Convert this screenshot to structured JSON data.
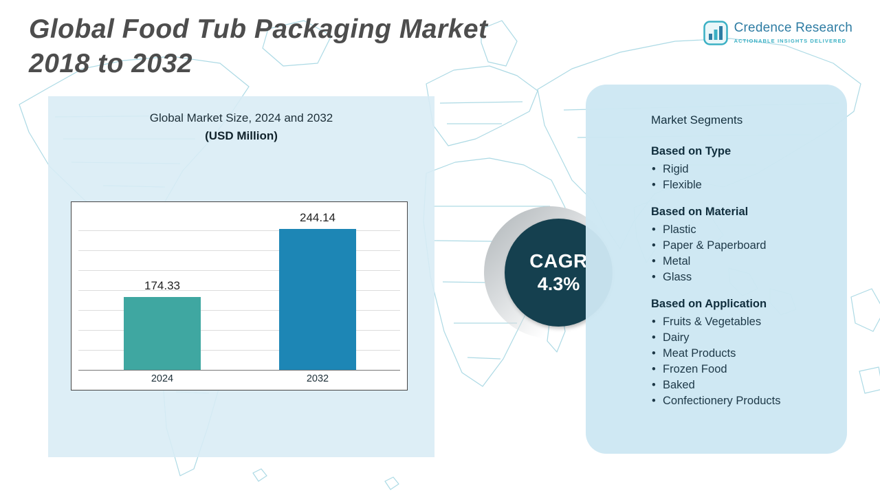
{
  "header": {
    "title_line1": "Global Food Tub Packaging Market",
    "title_line2": "2018 to 2032",
    "brand": {
      "name": "Credence Research",
      "tagline": "Actionable Insights Delivered"
    }
  },
  "chart_panel": {
    "title": "Global Market Size, 2024 and 2032",
    "subtitle": "(USD Million)"
  },
  "chart_data": {
    "type": "bar",
    "title": "Global Market Size, 2024 and 2032",
    "ylabel": "USD Million",
    "categories": [
      "2024",
      "2032"
    ],
    "values": [
      174.33,
      244.14
    ],
    "ylim": [
      100,
      260
    ],
    "grid": true,
    "legend": false,
    "bar_colors": [
      "#3fa7a1",
      "#1d86b5"
    ]
  },
  "cagr": {
    "label": "CAGR",
    "value": "4.3%"
  },
  "segments": {
    "title": "Market Segments",
    "sections": [
      {
        "heading": "Based on Type",
        "items": [
          "Rigid",
          "Flexible"
        ]
      },
      {
        "heading": "Based on Material",
        "items": [
          "Plastic",
          "Paper & Paperboard",
          "Metal",
          "Glass"
        ]
      },
      {
        "heading": "Based on Application",
        "items": [
          "Fruits & Vegetables",
          "Dairy",
          "Meat Products",
          "Frozen Food",
          "Baked",
          "Confectionery Products"
        ]
      }
    ]
  },
  "colors": {
    "bar_2024": "#3fa7a1",
    "bar_2032": "#1d86b5",
    "cagr_circle": "#15404f",
    "panel_blue": "#d6ecf5",
    "map_line": "#9ed3e0",
    "brand_blue": "#2e7ca3",
    "brand_teal": "#3ab0c4"
  }
}
